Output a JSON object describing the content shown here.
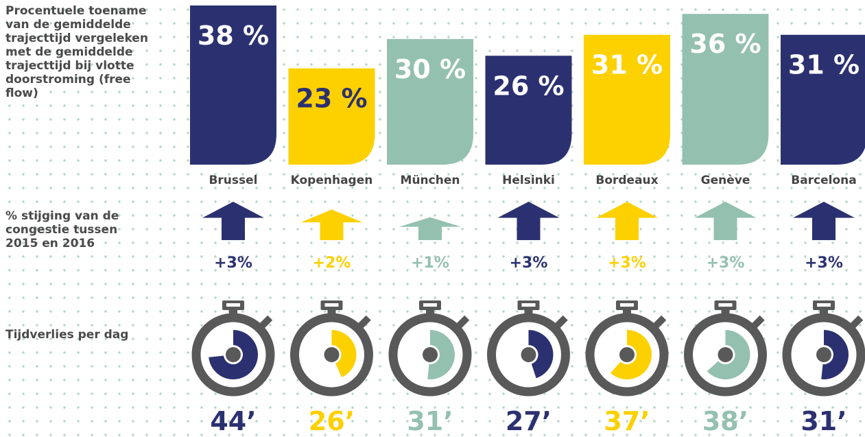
{
  "chart_data": {
    "type": "bar",
    "row_labels": [
      "Procentuele toename van de gemiddelde trajecttijd vergeleken met de gemiddelde trajecttijd bij vlotte doorstroming (free flow)",
      "% stijging van de congestie tussen 2015 en 2016",
      "Tijdverlies per dag"
    ],
    "categories": [
      "Brussel",
      "Kopenhagen",
      "München",
      "Helsinki",
      "Bordeaux",
      "Genève",
      "Barcelona"
    ],
    "colors": [
      "#2b3170",
      "#fdd000",
      "#94c0b0",
      "#2b3170",
      "#fdd000",
      "#94c0b0",
      "#2b3170"
    ],
    "label_colors": [
      "#ffffff",
      "#2b3170",
      "#ffffff",
      "#ffffff",
      "#ffffff",
      "#ffffff",
      "#ffffff"
    ],
    "values": [
      38,
      23,
      30,
      26,
      31,
      36,
      31
    ],
    "value_labels": [
      "38 %",
      "23 %",
      "30 %",
      "26 %",
      "31 %",
      "36 %",
      "31 %"
    ],
    "congestion_increase": {
      "values": [
        3,
        2,
        1,
        3,
        3,
        3,
        3
      ],
      "value_labels": [
        "+3%",
        "+2%",
        "+1%",
        "+3%",
        "+3%",
        "+3%",
        "+3%"
      ]
    },
    "time_lost": {
      "values": [
        44,
        26,
        31,
        27,
        37,
        38,
        31
      ],
      "value_labels": [
        "44’",
        "26’",
        "31’",
        "27’",
        "37’",
        "38’",
        "31’"
      ]
    }
  }
}
